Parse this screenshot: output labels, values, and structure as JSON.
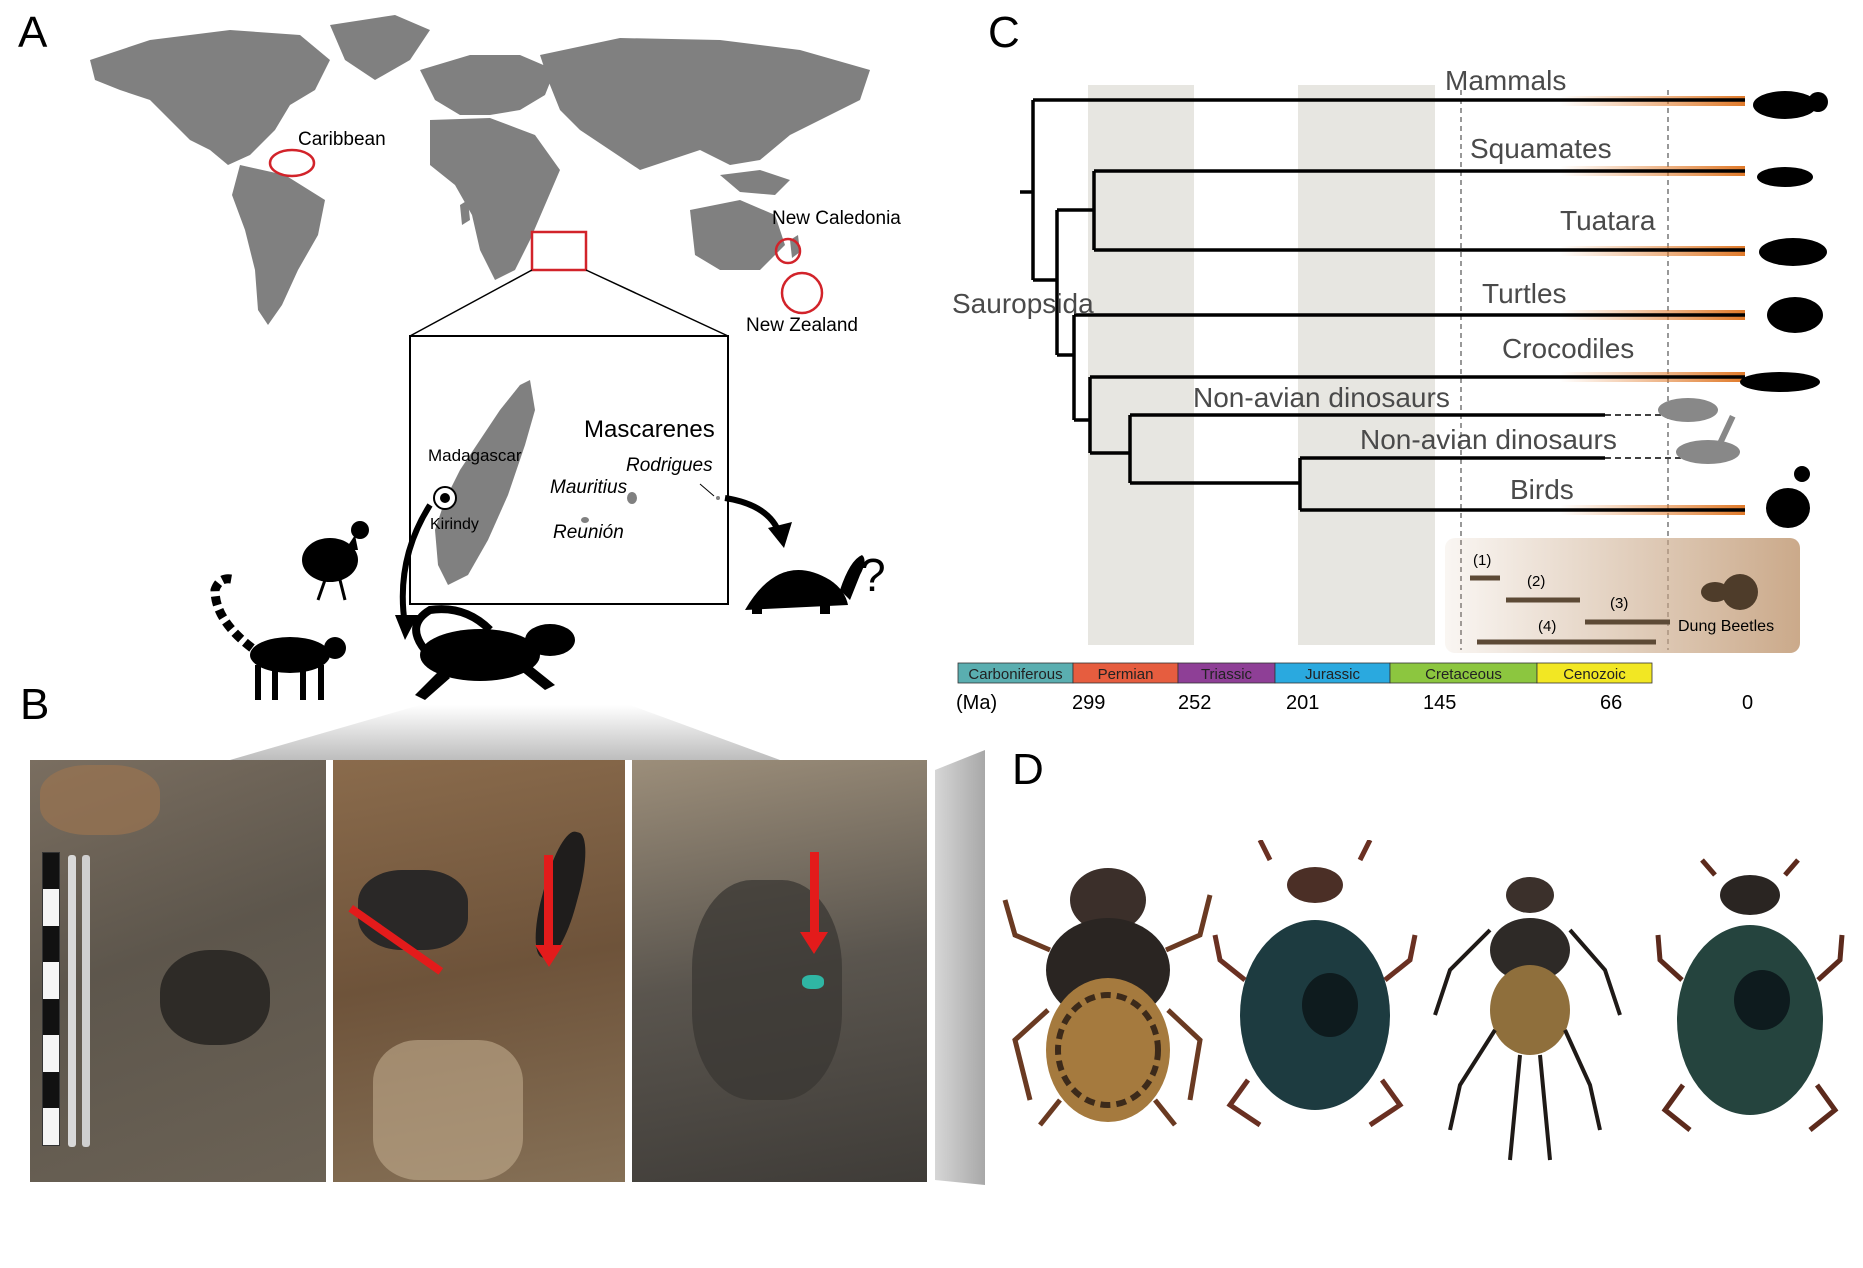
{
  "panels": {
    "a": "A",
    "b": "B",
    "c": "C",
    "d": "D"
  },
  "map": {
    "caribbean": "Caribbean",
    "new_caledonia": "New Caledonia",
    "new_zealand": "New Zealand",
    "mascarenes": "Mascarenes",
    "madagascar": "Madagascar",
    "kirindy": "Kirindy",
    "mauritius": "Mauritius",
    "rodrigues": "Rodrigues",
    "reunion": "Reunión",
    "question": "?"
  },
  "tree": {
    "clades": [
      "Mammals",
      "Squamates",
      "Tuatara",
      "Turtles",
      "Crocodiles",
      "Non-avian dinosaurs",
      "Non-avian dinosaurs",
      "Birds"
    ],
    "sauropsida": "Sauropsida",
    "ranges": [
      "(1)",
      "(2)",
      "(3)",
      "(4)"
    ],
    "dung_beetles": "Dung Beetles"
  },
  "timescale": {
    "unit": "(Ma)",
    "periods": [
      {
        "name": "Carboniferous",
        "color": "#5aaeb0"
      },
      {
        "name": "Permian",
        "color": "#e65d3f"
      },
      {
        "name": "Triassic",
        "color": "#8e3f96"
      },
      {
        "name": "Jurassic",
        "color": "#2aa9df"
      },
      {
        "name": "Cretaceous",
        "color": "#8cc63f"
      },
      {
        "name": "Cenozoic",
        "color": "#f2e723"
      }
    ],
    "ticks": [
      "299",
      "252",
      "201",
      "145",
      "66",
      "0"
    ]
  },
  "colors": {
    "map_land": "#808080",
    "circle": "#d2232a",
    "arrow": "#e31b1b",
    "orange": "#e07a2a",
    "shade": "#e7e6e1",
    "beetle_box": "#c8a584"
  }
}
